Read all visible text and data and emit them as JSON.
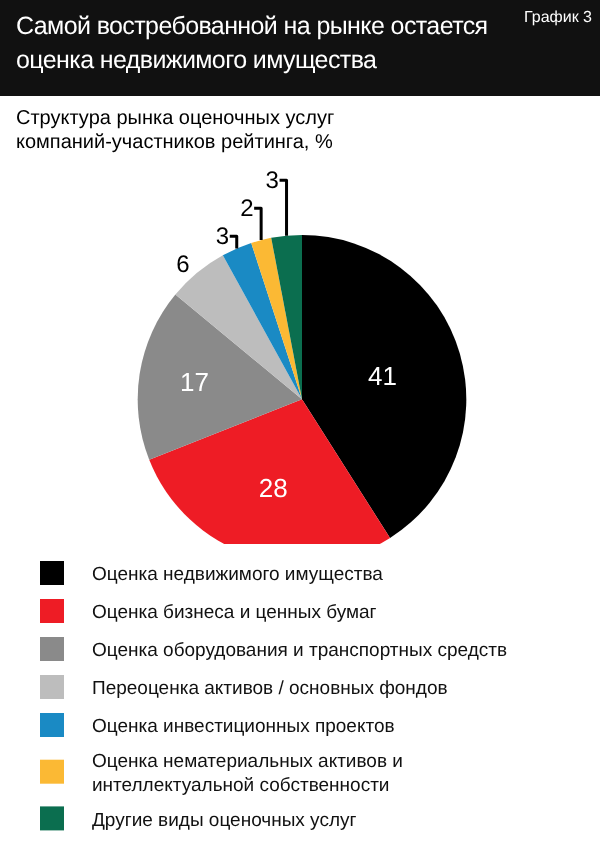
{
  "chart_data": {
    "type": "pie",
    "title": "Самой востребованной на рынке остается оценка недвижимого имущества",
    "subtitle": "Структура рынка оценочных услуг компаний-участников рейтинга, %",
    "annotations": [
      "График 3"
    ],
    "categories": [
      "Оценка недвижимого имущества",
      "Оценка бизнеса и ценных бумаг",
      "Оценка оборудования и транспортных средств",
      "Переоценка активов / основных фондов",
      "Оценка инвестиционных проектов",
      "Оценка нематериальных активов и интеллектуальной собственности",
      "Другие виды оценочных услуг"
    ],
    "values": [
      41,
      28,
      17,
      6,
      3,
      2,
      3
    ],
    "colors": [
      "#000000",
      "#ee1c25",
      "#8a8a8a",
      "#bdbdbd",
      "#1a8ac4",
      "#fbb934",
      "#0b6e4f"
    ],
    "data_labels": true,
    "legend": "bottom"
  }
}
